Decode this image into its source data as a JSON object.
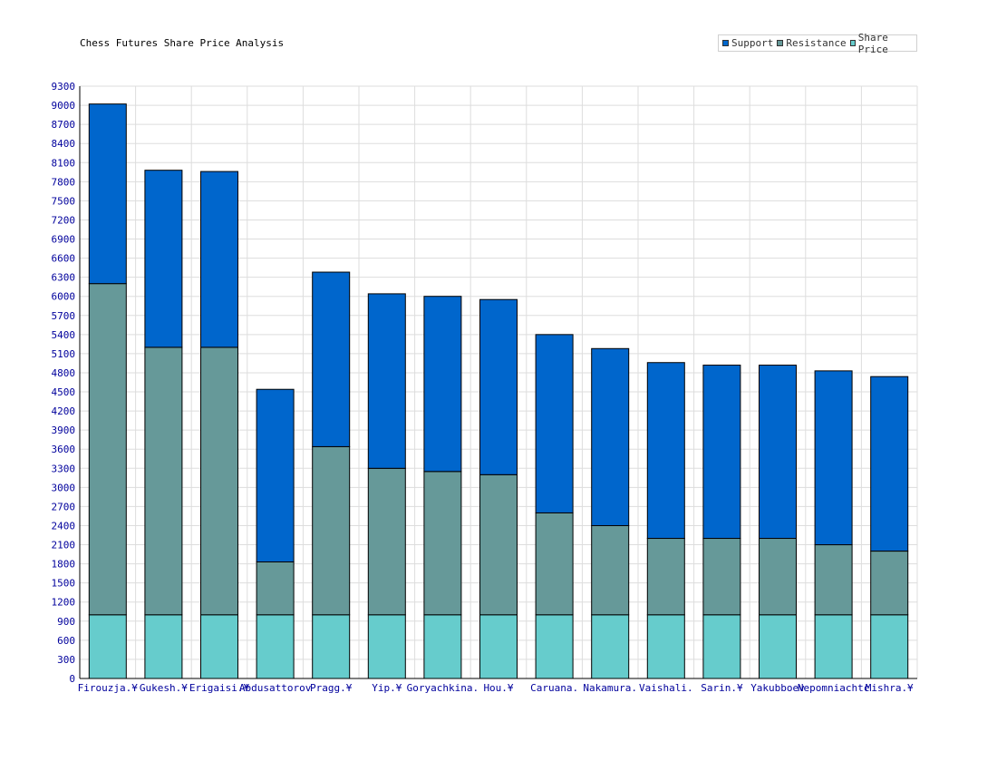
{
  "chart_data": {
    "type": "bar",
    "stacked": true,
    "title": "Chess Futures Share Price Analysis",
    "categories": [
      "Firouzja.¥",
      "Gukesh.¥",
      "Erigaisi.¥",
      "Abdusattorov",
      "Pragg.¥",
      "Yip.¥",
      "Goryachkina.",
      "Hou.¥",
      "Caruana.",
      "Nakamura.",
      "Vaishali.",
      "Sarin.¥",
      "Yakubboev",
      "Nepomniachtc",
      "Mishra.¥"
    ],
    "series": [
      {
        "name": "Share Price",
        "color": "#66cccc",
        "values": [
          1000,
          1000,
          1000,
          1000,
          1000,
          1000,
          1000,
          1000,
          1000,
          1000,
          1000,
          1000,
          1000,
          1000,
          1000
        ]
      },
      {
        "name": "Resistance",
        "color": "#669999",
        "values": [
          5200,
          4200,
          4200,
          830,
          2640,
          2300,
          2250,
          2200,
          1600,
          1400,
          1200,
          1200,
          1200,
          1100,
          1000
        ]
      },
      {
        "name": "Support",
        "color": "#0066cc",
        "values": [
          2820,
          2780,
          2760,
          2710,
          2740,
          2740,
          2750,
          2750,
          2800,
          2780,
          2760,
          2720,
          2720,
          2730,
          2740
        ]
      }
    ],
    "legend_order": [
      "Support",
      "Resistance",
      "Share Price"
    ],
    "ylim": [
      0,
      9300
    ],
    "yticks": [
      0,
      300,
      600,
      900,
      1200,
      1500,
      1800,
      2100,
      2400,
      2700,
      3000,
      3300,
      3600,
      3900,
      4200,
      4500,
      4800,
      5100,
      5400,
      5700,
      6000,
      6300,
      6600,
      6900,
      7200,
      7500,
      7800,
      8100,
      8400,
      8700,
      9000,
      9300
    ],
    "grid": true,
    "legend_position": "top-right",
    "xlabel": "",
    "ylabel": ""
  }
}
